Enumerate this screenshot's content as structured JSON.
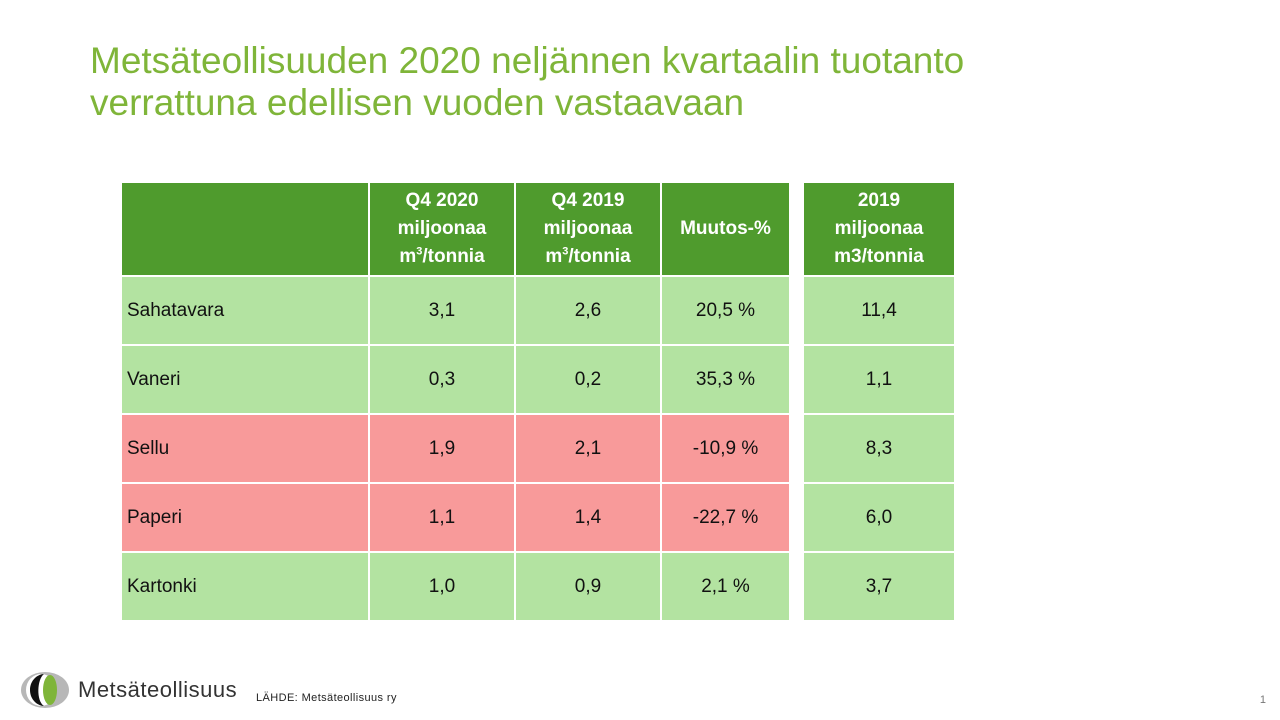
{
  "title": {
    "line1": "Metsäteollisuuden 2020 neljännen kvartaalin tuotanto",
    "line2": "verrattuna edellisen vuoden vastaavaan"
  },
  "table": {
    "headers": {
      "q4_2020": {
        "l1": "Q4 2020",
        "l2": "miljoonaa",
        "unit": "m",
        "sup": "3",
        "tail": "/tonnia"
      },
      "q4_2019": {
        "l1": "Q4 2019",
        "l2": "miljoonaa",
        "unit": "m",
        "sup": "3",
        "tail": "/tonnia"
      },
      "change": "Muutos-%"
    },
    "rows": [
      {
        "label": "Sahatavara",
        "q4_2020": "3,1",
        "q4_2019": "2,6",
        "change": "20,5 %",
        "status": "green"
      },
      {
        "label": "Vaneri",
        "q4_2020": "0,3",
        "q4_2019": "0,2",
        "change": "35,3 %",
        "status": "green"
      },
      {
        "label": "Sellu",
        "q4_2020": "1,9",
        "q4_2019": "2,1",
        "change": "-10,9 %",
        "status": "red"
      },
      {
        "label": "Paperi",
        "q4_2020": "1,1",
        "q4_2019": "1,4",
        "change": "-22,7 %",
        "status": "red"
      },
      {
        "label": "Kartonki",
        "q4_2020": "1,0",
        "q4_2019": "0,9",
        "change": "2,1 %",
        "status": "green"
      }
    ]
  },
  "side_table": {
    "header": {
      "l1": "2019",
      "l2": "miljoonaa",
      "l3": "m3/tonnia"
    },
    "values": [
      "11,4",
      "1,1",
      "8,3",
      "6,0",
      "3,7"
    ]
  },
  "colors": {
    "title": "#7fb539",
    "header_bg": "#4f9b2d",
    "row_green": "#b3e3a1",
    "row_red": "#f89a9a"
  },
  "footer": {
    "logo_text": "Metsäteollisuus",
    "source_label": "LÄHDE:",
    "source_value": "Metsäteollisuus ry",
    "page_number": "1"
  }
}
